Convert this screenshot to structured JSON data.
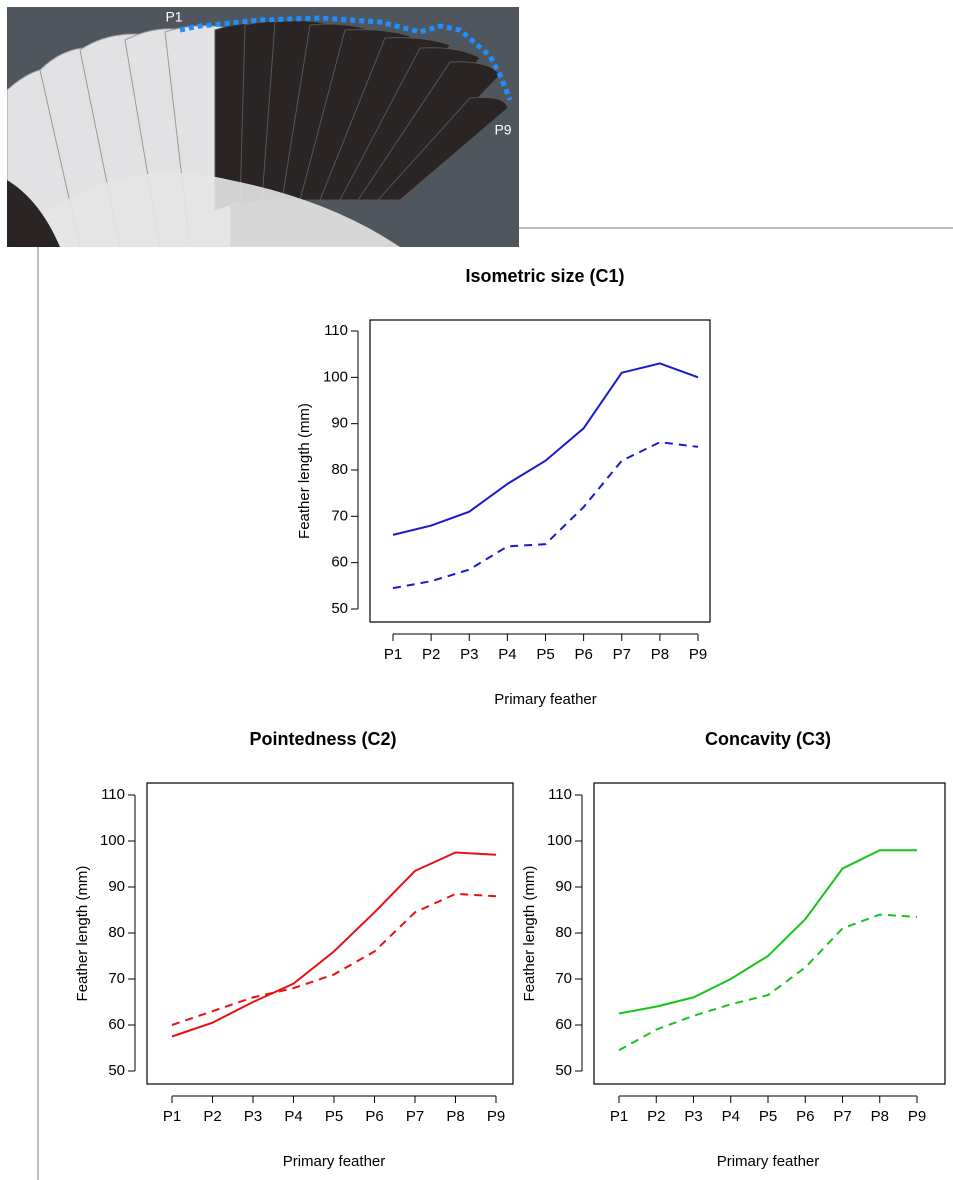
{
  "photo": {
    "labels": [
      "P1",
      "P9"
    ]
  },
  "chart_data": [
    {
      "type": "line",
      "title": "Isometric size (C1)",
      "xlabel": "Primary feather",
      "ylabel": "Feather length (mm)",
      "categories": [
        "P1",
        "P2",
        "P3",
        "P4",
        "P5",
        "P6",
        "P7",
        "P8",
        "P9"
      ],
      "series": [
        {
          "color": "#1a1acd",
          "line_style": "solid",
          "values": [
            66,
            68,
            71,
            77,
            82,
            89,
            101,
            103,
            100
          ]
        },
        {
          "color": "#1a1acd",
          "line_style": "dashed",
          "values": [
            54.5,
            56,
            58.5,
            63.5,
            64,
            72,
            82,
            86,
            85
          ]
        }
      ],
      "ylim": [
        50,
        110
      ],
      "yticks": [
        50,
        60,
        70,
        80,
        90,
        100,
        110
      ],
      "grid": false
    },
    {
      "type": "line",
      "title": "Pointedness (C2)",
      "xlabel": "Primary feather",
      "ylabel": "Feather length (mm)",
      "categories": [
        "P1",
        "P2",
        "P3",
        "P4",
        "P5",
        "P6",
        "P7",
        "P8",
        "P9"
      ],
      "series": [
        {
          "color": "#e81010",
          "line_style": "solid",
          "values": [
            57.5,
            60.5,
            65,
            69,
            76,
            84.5,
            93.5,
            97.5,
            97
          ]
        },
        {
          "color": "#e81010",
          "line_style": "dashed",
          "values": [
            60,
            63,
            66,
            68,
            71,
            76,
            84.5,
            88.5,
            88
          ]
        }
      ],
      "ylim": [
        50,
        110
      ],
      "yticks": [
        50,
        60,
        70,
        80,
        90,
        100,
        110
      ],
      "grid": false
    },
    {
      "type": "line",
      "title": "Concavity (C3)",
      "xlabel": "Primary feather",
      "ylabel": "Feather length (mm)",
      "categories": [
        "P1",
        "P2",
        "P3",
        "P4",
        "P5",
        "P6",
        "P7",
        "P8",
        "P9"
      ],
      "series": [
        {
          "color": "#18c418",
          "line_style": "solid",
          "values": [
            62.5,
            64,
            66,
            70,
            75,
            83,
            94,
            98,
            98
          ]
        },
        {
          "color": "#18c418",
          "line_style": "dashed",
          "values": [
            54.5,
            59,
            62,
            64.5,
            66.5,
            72.5,
            81,
            84,
            83.5
          ]
        }
      ],
      "ylim": [
        50,
        110
      ],
      "yticks": [
        50,
        60,
        70,
        80,
        90,
        100,
        110
      ],
      "grid": false
    }
  ]
}
